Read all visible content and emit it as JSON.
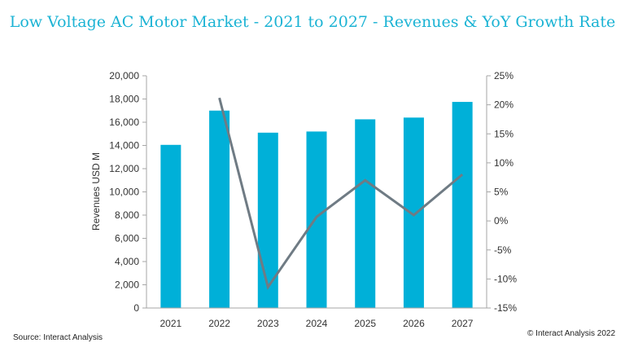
{
  "header": {
    "title": "Low Voltage AC Motor Market - 2021 to 2027 - Revenues & YoY Growth Rate"
  },
  "footer": {
    "source": "Source: Interact Analysis",
    "copyright": "© Interact Analysis 2022"
  },
  "colors": {
    "bar": "#00b0d8",
    "line": "#6f7b84",
    "axis": "#a6a6a6",
    "title": "#1bb3d4"
  },
  "chart_data": {
    "type": "bar+line",
    "title": "Low Voltage AC Motor Market - 2021 to 2027 - Revenues & YoY Growth Rate",
    "categories": [
      "2021",
      "2022",
      "2023",
      "2024",
      "2025",
      "2026",
      "2027"
    ],
    "series": [
      {
        "type": "bar",
        "axis": "left",
        "values": [
          14050,
          17000,
          15100,
          15200,
          16250,
          16400,
          17750
        ]
      },
      {
        "type": "line",
        "axis": "right",
        "values": [
          null,
          21.2,
          -11.4,
          0.7,
          7.0,
          1.0,
          8.0
        ]
      }
    ],
    "ylabel": "Revenues USD M",
    "ylim": [
      0,
      20000
    ],
    "y_ticks": [
      "0",
      "2,000",
      "4,000",
      "6,000",
      "8,000",
      "10,000",
      "12,000",
      "14,000",
      "16,000",
      "18,000",
      "20,000"
    ],
    "y_tick_values": [
      0,
      2000,
      4000,
      6000,
      8000,
      10000,
      12000,
      14000,
      16000,
      18000,
      20000
    ],
    "y2lim": [
      -15,
      25
    ],
    "y2_ticks": [
      "-15%",
      "-10%",
      "-5%",
      "0%",
      "5%",
      "10%",
      "15%",
      "20%",
      "25%"
    ],
    "y2_tick_values": [
      -15,
      -10,
      -5,
      0,
      5,
      10,
      15,
      20,
      25
    ],
    "grid": false,
    "legend": "none"
  }
}
